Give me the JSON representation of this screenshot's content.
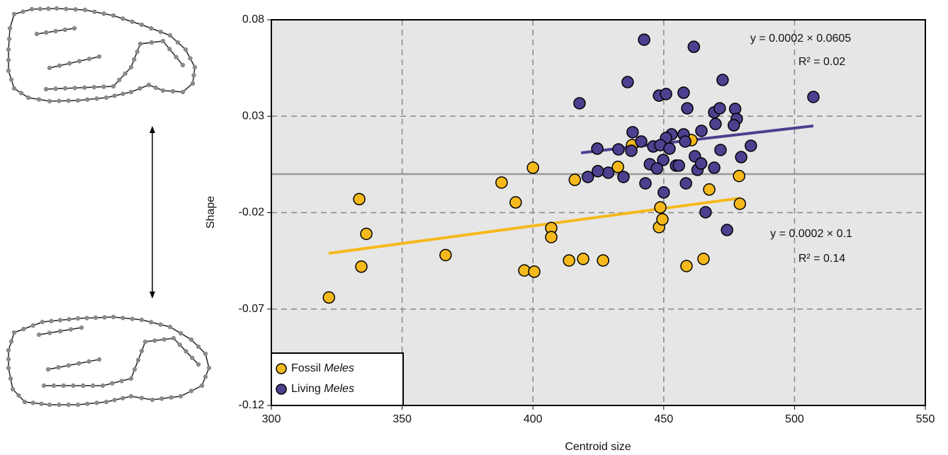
{
  "chart_data": {
    "type": "scatter",
    "xlabel": "Centroid size",
    "ylabel": "Shape",
    "xlim": [
      300,
      550
    ],
    "xticks": [
      300,
      350,
      400,
      450,
      500,
      550
    ],
    "ylim": [
      -0.12,
      0.08
    ],
    "yticks": [
      -0.12,
      -0.07,
      -0.02,
      0.03,
      0.08
    ],
    "grid": true,
    "zero_line": 0,
    "legend": "lower left",
    "series": [
      {
        "name": "Fossil Meles",
        "color": "#f5b91c",
        "x": [
          322,
          333.6,
          336.3,
          334.4,
          366.6,
          388,
          393.4,
          396.7,
          400.5,
          400,
          407,
          407,
          416,
          413.8,
          419.2,
          426.8,
          432.5,
          437.9,
          448.2,
          449.5,
          448.7,
          458.7,
          460.6,
          467.4,
          465.2,
          478.8,
          479.1
        ],
        "values": [
          -0.064,
          -0.013,
          -0.031,
          -0.048,
          -0.042,
          -0.0044,
          -0.0147,
          -0.05,
          -0.0506,
          0.0033,
          -0.028,
          -0.0327,
          -0.003,
          -0.0448,
          -0.044,
          -0.0448,
          0.0037,
          0.015,
          -0.0275,
          -0.0235,
          -0.0173,
          -0.0477,
          0.0176,
          -0.008,
          -0.044,
          -0.001,
          -0.0154
        ],
        "trend": {
          "x": [
            321.9,
            479.1
          ],
          "values": [
            -0.0411,
            -0.0125
          ]
        }
      },
      {
        "name": "Living Meles",
        "color": "#4e3f8f",
        "x": [
          442.5,
          461.5,
          436.2,
          417.8,
          438.1,
          424.6,
          432.7,
          437.6,
          441.4,
          446,
          448.2,
          450.9,
          457.6,
          459,
          472.5,
          507.2,
          469.3,
          471.4,
          477.3,
          477.9,
          476.8,
          469.8,
          464.4,
          453,
          457.6,
          450.9,
          458.2,
          448.7,
          452.2,
          471.7,
          483.3,
          479.6,
          461.9,
          444.7,
          449.8,
          447.4,
          454.7,
          455.8,
          462.9,
          464.3,
          469.3,
          428.8,
          424.8,
          421,
          434.6,
          443,
          458.5,
          450,
          466,
          474.2
        ],
        "values": [
          0.0697,
          0.066,
          0.0477,
          0.0367,
          0.0217,
          0.0132,
          0.0128,
          0.0121,
          0.0169,
          0.0143,
          0.0407,
          0.0415,
          0.0422,
          0.0341,
          0.0488,
          0.04,
          0.032,
          0.0341,
          0.0338,
          0.0286,
          0.0253,
          0.026,
          0.0224,
          0.0206,
          0.0206,
          0.0187,
          0.0169,
          0.015,
          0.0132,
          0.0125,
          0.0147,
          0.0088,
          0.0092,
          0.0051,
          0.0073,
          0.0029,
          0.0044,
          0.0044,
          0.0022,
          0.0055,
          0.0033,
          0.0007,
          0.0015,
          -0.0015,
          -0.0015,
          -0.0048,
          -0.0048,
          -0.0095,
          -0.0198,
          -0.029
        ],
        "trend": {
          "x": [
            418.4,
            507.2
          ],
          "values": [
            0.011,
            0.025
          ]
        }
      }
    ],
    "annotations": [
      "y = 0.0002 × 0.0605",
      "R² = 0.02",
      "y = 0.0002 × 0.1",
      "R² = 0.14"
    ]
  }
}
